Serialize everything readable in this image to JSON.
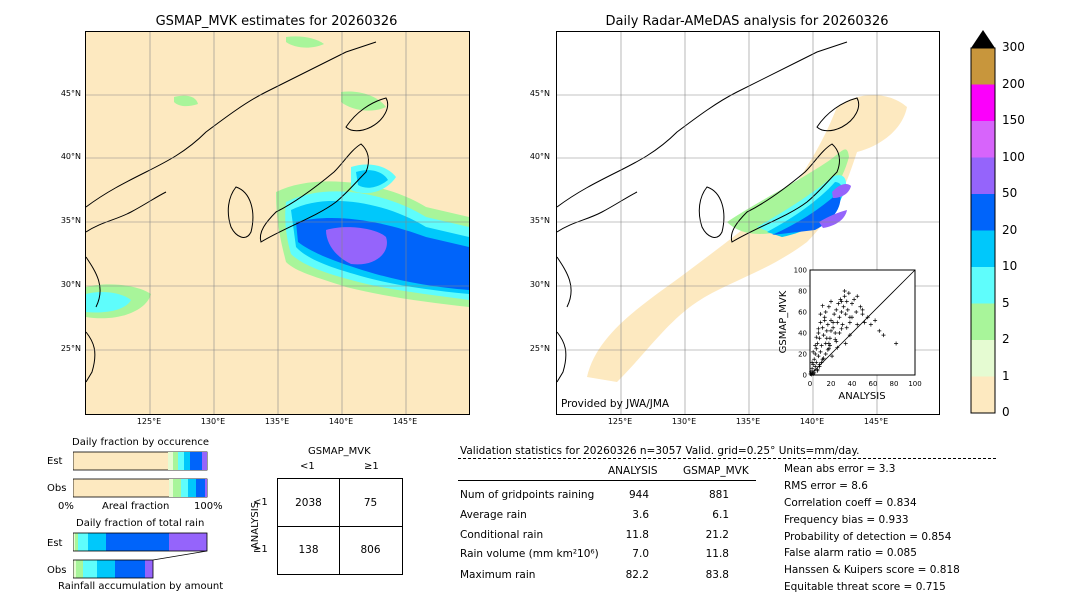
{
  "titles": {
    "left": "GSMAP_MVK estimates for 20260326",
    "right": "Daily Radar-AMeDAS analysis for 20260326"
  },
  "provided_by": "Provided by JWA/JMA",
  "lat_labels": [
    "45°N",
    "40°N",
    "35°N",
    "30°N",
    "25°N"
  ],
  "lon_labels": [
    "125°E",
    "130°E",
    "135°E",
    "140°E",
    "145°E"
  ],
  "colorbar": {
    "ticks": [
      "0",
      "1",
      "2",
      "5",
      "10",
      "20",
      "50",
      "100",
      "150",
      "200",
      "300"
    ],
    "colors": [
      "#fde9c0",
      "#e5fbd2",
      "#a8f59a",
      "#5ffdfc",
      "#00c8fb",
      "#0064fa",
      "#9564fb",
      "#d764fb",
      "#fb00fb",
      "#c8963c"
    ]
  },
  "fraction_occurrence": {
    "title": "Daily fraction by occurence",
    "rows": [
      "Est",
      "Obs"
    ],
    "xlabel_left": "0%",
    "xlabel_mid": "Areal fraction",
    "xlabel_right": "100%"
  },
  "fraction_rain": {
    "title": "Daily fraction of total rain",
    "rows": [
      "Est",
      "Obs"
    ],
    "footer": "Rainfall accumulation by amount"
  },
  "contingency": {
    "title": "GSMAP_MVK",
    "col_labels": [
      "<1",
      "≥1"
    ],
    "row_axis": "ANALYSIS",
    "row_labels": [
      "<1",
      "≥1"
    ],
    "cells": [
      "2038",
      "75",
      "138",
      "806"
    ]
  },
  "validation": {
    "header": "Validation statistics for 20260326  n=3057 Valid. grid=0.25° Units=mm/day.",
    "col_analysis": "ANALYSIS",
    "col_gsmap": "GSMAP_MVK",
    "rows": [
      {
        "label": "Num of gridpoints raining",
        "a": "944",
        "g": "881"
      },
      {
        "label": "Average rain",
        "a": "3.6",
        "g": "6.1"
      },
      {
        "label": "Conditional rain",
        "a": "11.8",
        "g": "21.2"
      },
      {
        "label": "Rain volume (mm km²10⁶)",
        "a": "7.0",
        "g": "11.8"
      },
      {
        "label": "Maximum rain",
        "a": "82.2",
        "g": "83.8"
      }
    ],
    "scores": [
      "Mean abs error =    3.3",
      "RMS error =    8.6",
      "Correlation coeff =  0.834",
      "Frequency bias =  0.933",
      "Probability of detection =  0.854",
      "False alarm ratio =  0.085",
      "Hanssen & Kuipers score =  0.818",
      "Equitable threat score =  0.715"
    ]
  },
  "chart_data": {
    "type": "scatter",
    "xlabel": "ANALYSIS",
    "ylabel": "GSMAP_MVK",
    "xlim": [
      0,
      100
    ],
    "ylim": [
      0,
      100
    ],
    "ticks": [
      "0",
      "20",
      "40",
      "60",
      "80",
      "100"
    ],
    "reference_line": "y = x",
    "x": [
      0.5,
      1,
      1.5,
      2,
      2.5,
      3,
      3,
      4,
      4,
      5,
      5,
      6,
      6,
      7,
      7,
      8,
      8,
      9,
      9,
      10,
      10,
      11,
      12,
      12,
      13,
      14,
      15,
      15,
      16,
      17,
      18,
      18,
      19,
      20,
      20,
      22,
      23,
      24,
      25,
      26,
      27,
      28,
      29,
      30,
      31,
      32,
      33,
      34,
      35,
      36,
      37,
      38,
      40,
      42,
      44,
      45,
      48,
      50,
      52,
      55,
      58,
      62,
      66,
      70,
      82,
      2,
      3,
      5,
      6,
      8,
      10,
      12,
      14,
      16,
      18,
      20,
      22,
      25,
      28,
      30,
      33,
      35,
      38,
      40,
      45,
      50,
      4,
      7,
      9,
      11,
      13,
      15,
      17,
      19,
      21,
      24,
      26,
      30,
      34,
      38
    ],
    "y": [
      1,
      3,
      0.5,
      6,
      2,
      10,
      1,
      15,
      4,
      20,
      8,
      25,
      12,
      5,
      30,
      18,
      40,
      10,
      35,
      22,
      50,
      28,
      45,
      15,
      38,
      55,
      30,
      60,
      42,
      48,
      25,
      65,
      35,
      52,
      70,
      45,
      58,
      40,
      62,
      50,
      68,
      55,
      72,
      60,
      48,
      65,
      75,
      58,
      70,
      62,
      78,
      55,
      68,
      72,
      60,
      75,
      65,
      58,
      50,
      55,
      48,
      52,
      42,
      38,
      30,
      12,
      22,
      28,
      36,
      44,
      58,
      66,
      52,
      35,
      30,
      42,
      50,
      32,
      40,
      70,
      80,
      45,
      38,
      55,
      48,
      62,
      2,
      4,
      8,
      12,
      16,
      20,
      24,
      28,
      18,
      34,
      26,
      44,
      30,
      50
    ]
  }
}
